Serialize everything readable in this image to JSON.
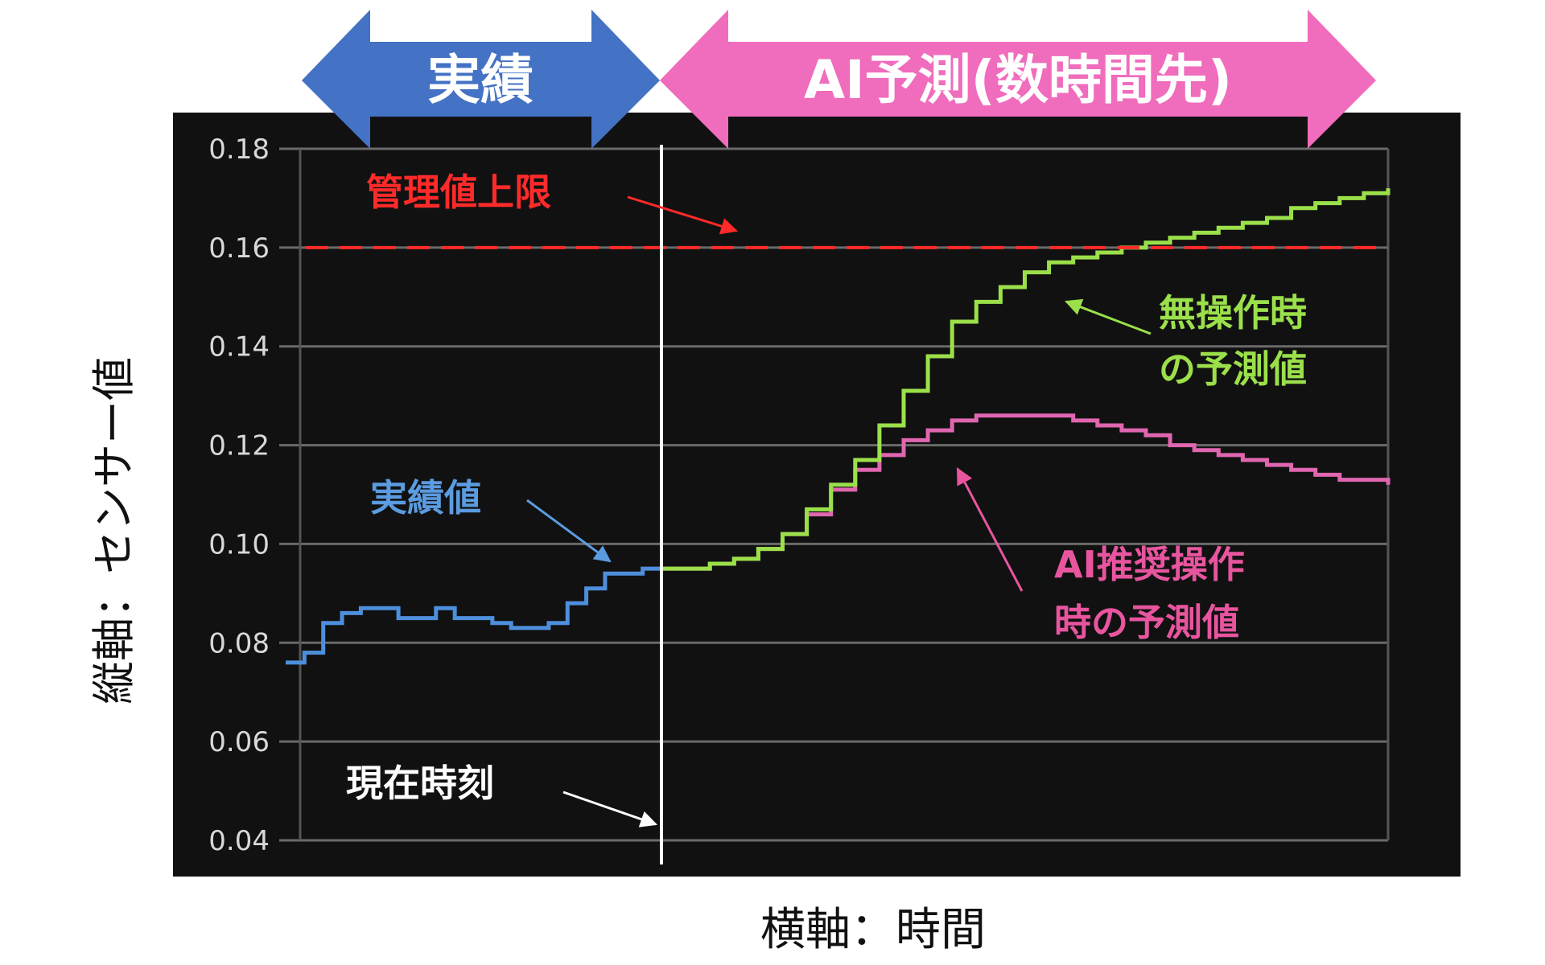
{
  "chart_data": {
    "type": "line",
    "ylabel": "縦軸：センサー値",
    "xlabel": "横軸：時間",
    "ylim": [
      0.04,
      0.18
    ],
    "yticks": [
      "0.04",
      "0.06",
      "0.08",
      "0.10",
      "0.12",
      "0.14",
      "0.16",
      "0.18"
    ],
    "ytick_values": [
      0.04,
      0.06,
      0.08,
      0.1,
      0.12,
      0.14,
      0.16,
      0.18
    ],
    "grid": true,
    "background": "#111111",
    "banners": {
      "actual": "実績",
      "forecast": "AI予測(数時間先)"
    },
    "limit": {
      "label": "管理値上限",
      "value": 0.16,
      "color": "#ff2a2a"
    },
    "now_label": "現在時刻",
    "series": [
      {
        "name": "実績値",
        "color": "#4d8fdc",
        "label_color": "#5b9be0",
        "y": [
          0.076,
          0.078,
          0.084,
          0.086,
          0.087,
          0.087,
          0.085,
          0.085,
          0.087,
          0.085,
          0.085,
          0.084,
          0.083,
          0.083,
          0.084,
          0.088,
          0.091,
          0.094,
          0.094,
          0.095,
          0.095
        ]
      },
      {
        "name": "無操作時\nの予測値",
        "label_lines": [
          "無操作時",
          "の予測値"
        ],
        "color": "#9be04a",
        "label_color": "#9be04a",
        "y": [
          0.095,
          0.095,
          0.096,
          0.097,
          0.099,
          0.102,
          0.107,
          0.112,
          0.117,
          0.124,
          0.131,
          0.138,
          0.145,
          0.149,
          0.152,
          0.155,
          0.157,
          0.158,
          0.159,
          0.16,
          0.161,
          0.162,
          0.163,
          0.164,
          0.165,
          0.166,
          0.168,
          0.169,
          0.17,
          0.171,
          0.172
        ]
      },
      {
        "name": "AI推奨操作\n時の予測値",
        "label_lines": [
          "AI推奨操作",
          "時の予測値"
        ],
        "color": "#e066b0",
        "label_color": "#e8559f",
        "y": [
          0.095,
          0.095,
          0.096,
          0.097,
          0.099,
          0.102,
          0.106,
          0.111,
          0.115,
          0.118,
          0.121,
          0.123,
          0.125,
          0.126,
          0.126,
          0.126,
          0.126,
          0.125,
          0.124,
          0.123,
          0.122,
          0.12,
          0.119,
          0.118,
          0.117,
          0.116,
          0.115,
          0.114,
          0.113,
          0.113,
          0.112
        ]
      }
    ]
  }
}
